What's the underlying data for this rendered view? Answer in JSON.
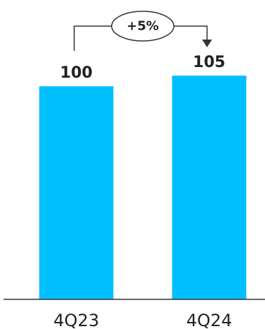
{
  "chart_data": {
    "type": "bar",
    "categories": [
      "4Q23",
      "4Q24"
    ],
    "values": [
      100,
      105
    ],
    "data_labels": [
      "100",
      "105"
    ],
    "title": "",
    "xlabel": "",
    "ylabel": "",
    "ylim": [
      0,
      114
    ],
    "grid": false,
    "legend": "none",
    "annotation": {
      "text": "+5%",
      "from_category": "4Q23",
      "to_category": "4Q24"
    }
  },
  "colors": {
    "bar": "#00BFFF",
    "text": "#222222",
    "axis": "#333333",
    "annotation_line": "#333333"
  }
}
